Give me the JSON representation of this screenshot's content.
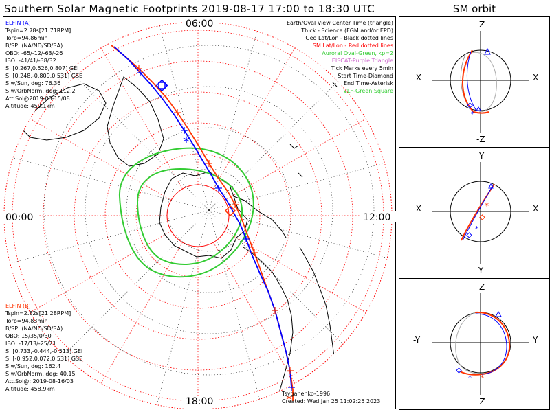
{
  "header": {
    "title": "Southern Solar Magnetic Footprints 2019-08-17 17:00 to 18:30 UTC",
    "orbit_title": "SM orbit"
  },
  "map": {
    "mlt_labels": {
      "top": "06:00",
      "left": "00:00",
      "right": "12:00",
      "bottom": "18:00"
    },
    "legend": [
      {
        "text": "Earth/Oval View Center Time (triangle)",
        "color": "#000000"
      },
      {
        "text": "Thick - Science (FGM and/or EPD)",
        "color": "#000000"
      },
      {
        "text": "Geo Lat/Lon - Black dotted lines",
        "color": "#000000"
      },
      {
        "text": "SM Lat/Lon - Red dotted lines",
        "color": "#ff0000"
      },
      {
        "text": "Auroral Oval-Green, kp=2",
        "color": "#33cc33"
      },
      {
        "text": "EISCAT-Purple Triangle",
        "color": "#cc66cc"
      },
      {
        "text": "Tick Marks every 5min",
        "color": "#000000"
      },
      {
        "text": "Start Time-Diamond",
        "color": "#000000"
      },
      {
        "text": "End Time-Asterisk",
        "color": "#000000"
      },
      {
        "text": "VLF-Green Square",
        "color": "#33cc33"
      }
    ],
    "elfin_a": {
      "name": "ELFIN (A)",
      "color": "#0000ff",
      "lines": [
        "Tspin=2.78s[21.71RPM]",
        "Torb=94.86min",
        "B/SP: (NA/ND/SD/SA)",
        "OBO: -65/-12/-63/-26",
        "IBO: -41/41/-38/32",
        "S: [0.267,0.526,0.807] GEI",
        "S: [0.248,-0.809,0.531] GSE",
        "S w/Sun, deg: 76.36",
        "S w/OrbNorm, deg: 112.2",
        "Att.Sol@2019-08-15/08",
        "Altitude: 459.1km"
      ]
    },
    "elfin_b": {
      "name": "ELFIN (B)",
      "color": "#ff3300",
      "lines": [
        "Tspin=2.82s[21.28RPM]",
        "Torb=94.83min",
        "B/SP: (NA/ND/SD/SA)",
        "OBO: 15/35/0/30",
        "IBO: -17/13/-25/21",
        "S: [0.733,-0.444,-0.513] GEI",
        "S: [-0.952,0.072,0.531] GSE",
        "S w/Sun, deg: 162.4",
        "S w/OrbNorm, deg: 40.15",
        "Att.Sol@: 2019-08-16/03",
        "Altitude: 458.9km"
      ]
    },
    "model_credit": "Tsyganenko-1996",
    "created": "Created: Wed Jan 25 11:02:25 2023",
    "colors": {
      "sm_grid": "#ff0000",
      "geo_grid": "#000000",
      "oval": "#33cc33",
      "elfin_a": "#0000ff",
      "elfin_b": "#ff3300",
      "coast": "#000000"
    }
  },
  "orbit_panels": [
    {
      "top": "Z",
      "bottom": "-Z",
      "left": "-X",
      "right": "X"
    },
    {
      "top": "Y",
      "bottom": "-Y",
      "left": "-X",
      "right": "X"
    },
    {
      "top": "Z",
      "bottom": "-Z",
      "left": "-Y",
      "right": "Y"
    }
  ]
}
